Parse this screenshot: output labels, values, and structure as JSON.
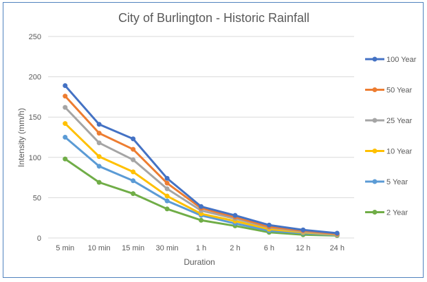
{
  "chart_data": {
    "type": "line",
    "title": "City of Burlington - Historic Rainfall",
    "xlabel": "Duration",
    "ylabel": "Intensity (mm/h)",
    "categories": [
      "5 min",
      "10 min",
      "15 min",
      "30 min",
      "1 h",
      "2 h",
      "6 h",
      "12 h",
      "24 h"
    ],
    "ylim": [
      0,
      250
    ],
    "yticks": [
      "0",
      "50",
      "100",
      "150",
      "200",
      "250"
    ],
    "grid": true,
    "legend_position": "right",
    "series": [
      {
        "name": "100 Year",
        "color": "#4472c4",
        "values": [
          189,
          141,
          123,
          74,
          39,
          28,
          16,
          10,
          6
        ]
      },
      {
        "name": "50 Year",
        "color": "#ed7d31",
        "values": [
          176,
          130,
          110,
          68,
          37,
          26,
          14,
          9,
          5
        ]
      },
      {
        "name": "25 Year",
        "color": "#a5a5a5",
        "values": [
          162,
          118,
          97,
          61,
          34,
          24,
          13,
          8,
          4.5
        ]
      },
      {
        "name": "10 Year",
        "color": "#ffc000",
        "values": [
          142,
          101,
          82,
          52,
          30,
          21,
          11,
          7,
          4
        ]
      },
      {
        "name": "5 Year",
        "color": "#5b9bd5",
        "values": [
          125,
          89,
          71,
          46,
          28,
          18,
          9,
          6,
          3.5
        ]
      },
      {
        "name": "2 Year",
        "color": "#70ad47",
        "values": [
          98,
          69,
          55,
          36,
          22,
          15,
          7,
          4,
          3
        ]
      }
    ]
  }
}
